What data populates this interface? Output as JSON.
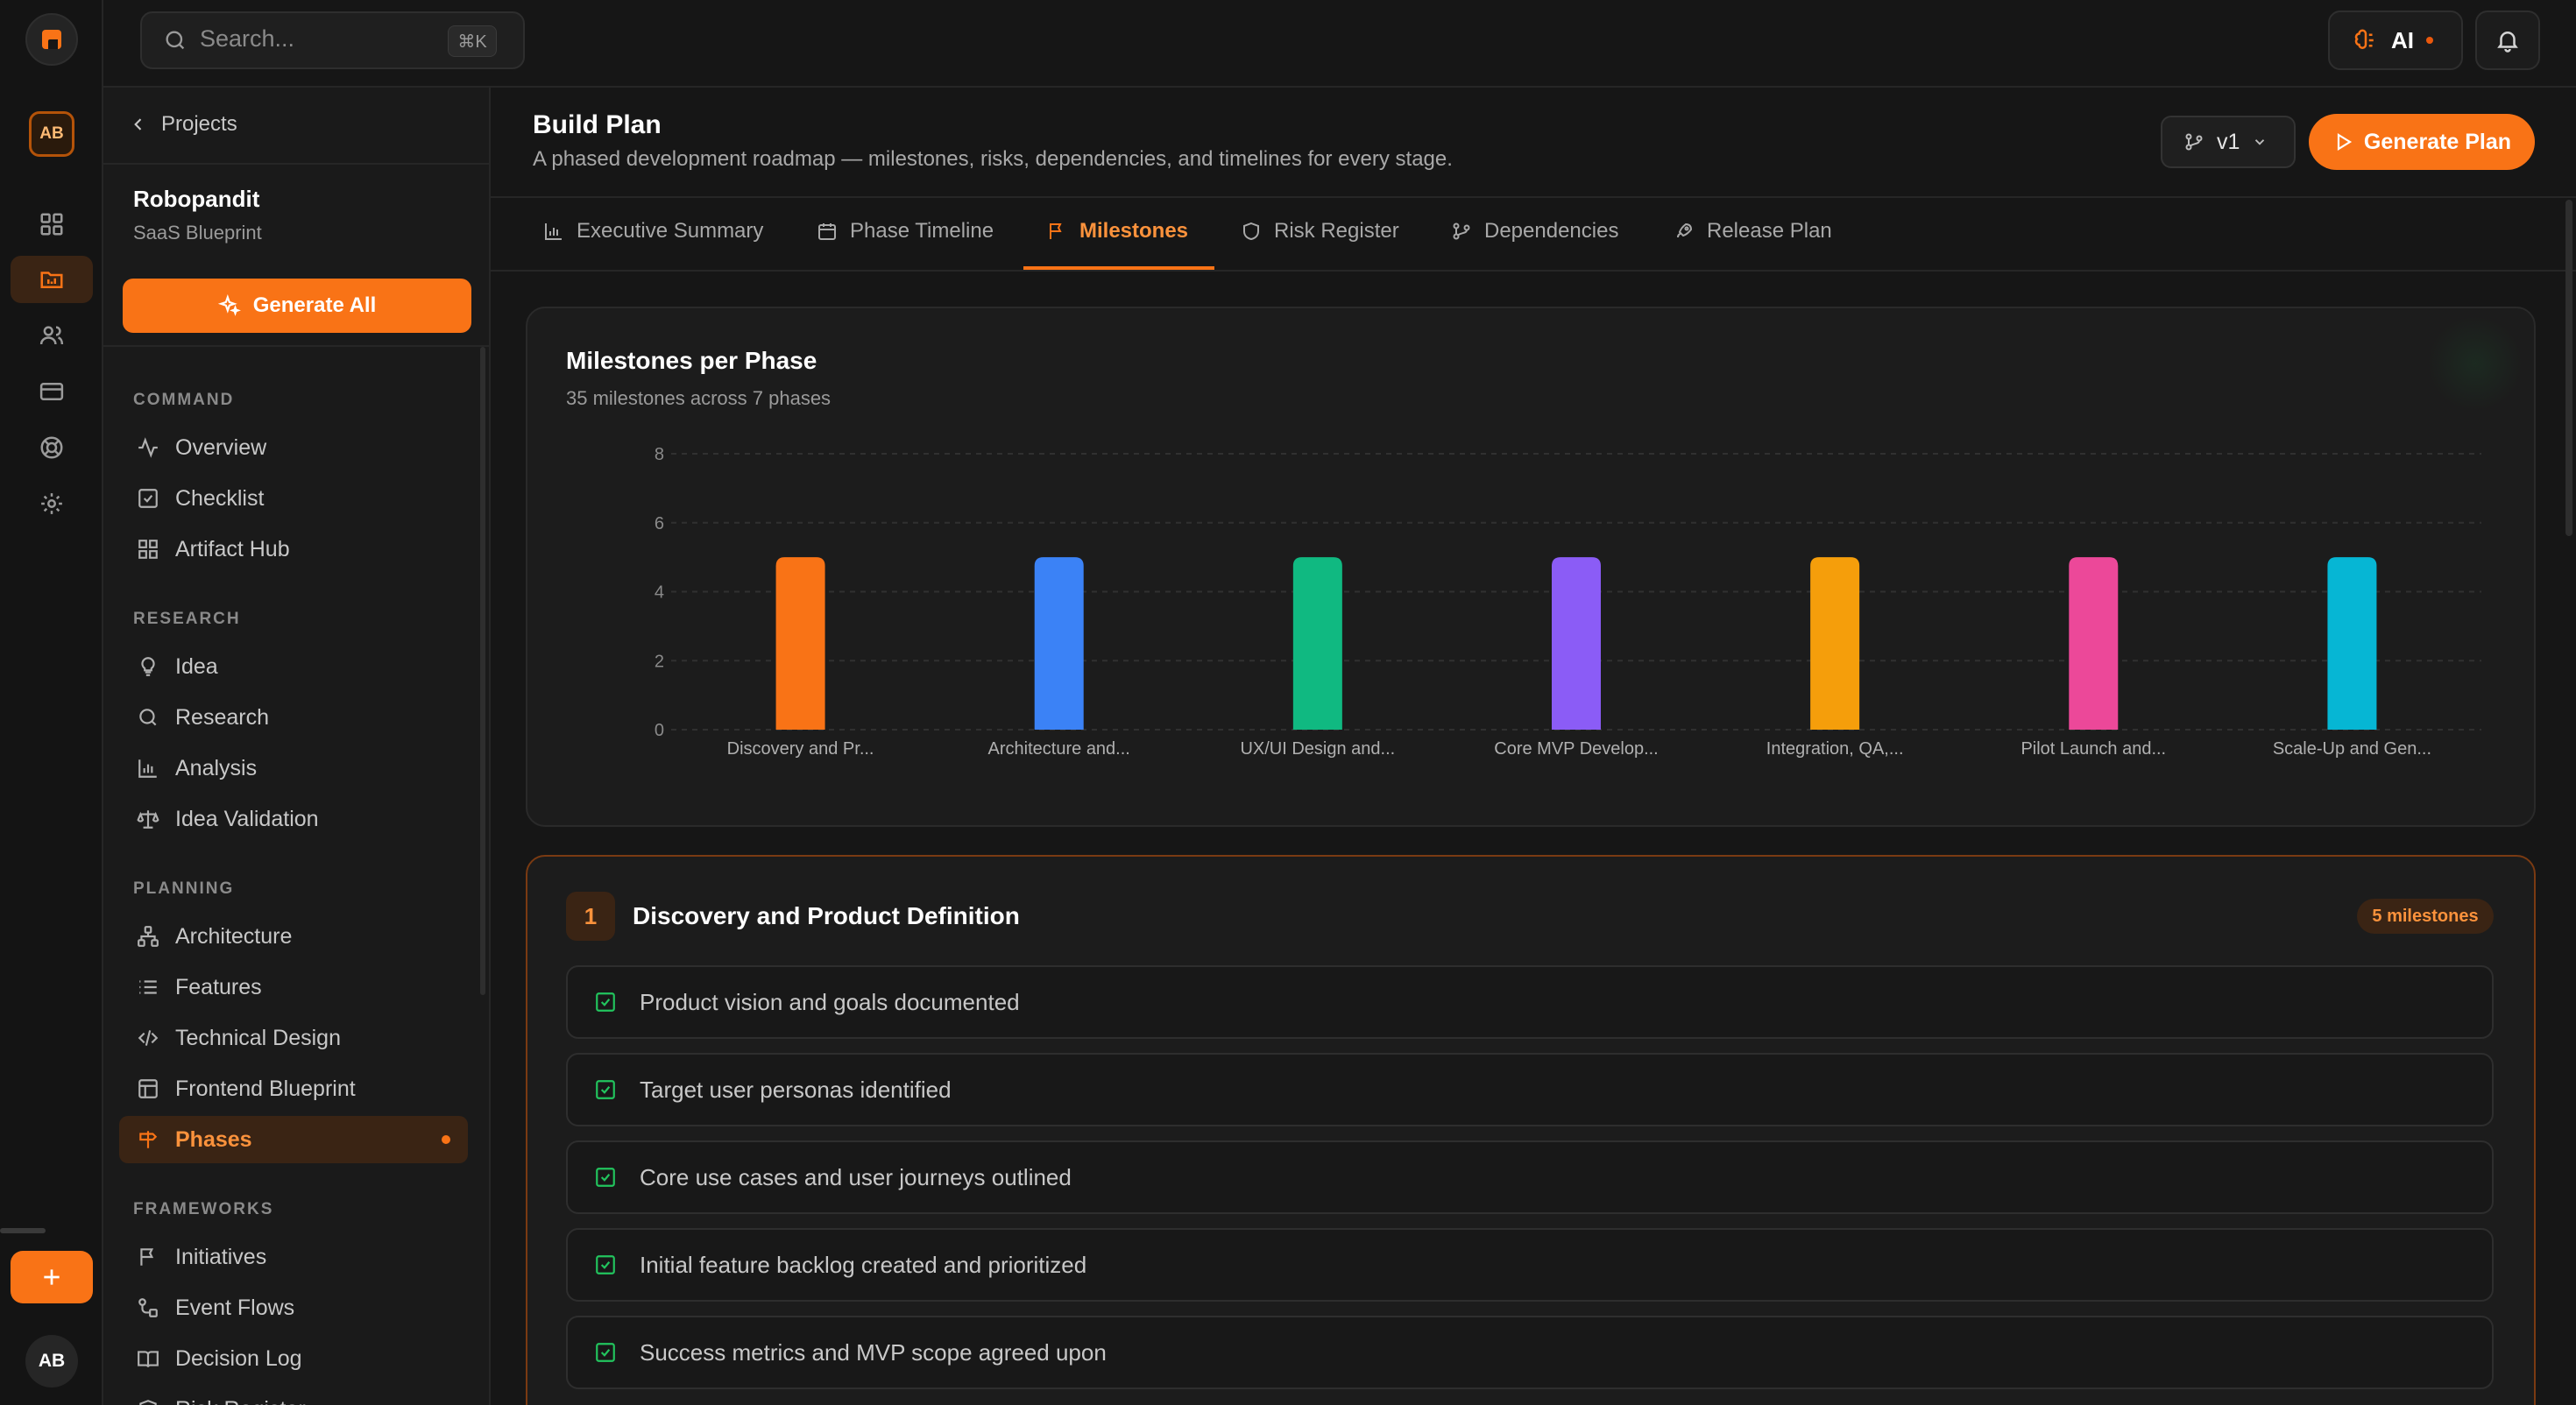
{
  "colors": {
    "accent": "#f97316",
    "background": "#161616",
    "check": "#22c55e"
  },
  "topbar": {
    "search_placeholder": "Search...",
    "search_shortcut": "⌘K",
    "ai_label": "AI"
  },
  "rail": {
    "avatar_initials": "AB",
    "user_initials": "AB",
    "icons": [
      "dashboard-icon",
      "projects-icon",
      "users-icon",
      "billing-icon",
      "help-icon",
      "settings-icon"
    ]
  },
  "sidebar": {
    "back_label": "Projects",
    "project_name": "Robopandit",
    "project_subtitle": "SaaS Blueprint",
    "generate_all_label": "Generate All",
    "sections": {
      "command": {
        "title": "COMMAND",
        "items": [
          "Overview",
          "Checklist",
          "Artifact Hub"
        ]
      },
      "research": {
        "title": "RESEARCH",
        "items": [
          "Idea",
          "Research",
          "Analysis",
          "Idea Validation"
        ]
      },
      "planning": {
        "title": "PLANNING",
        "items": [
          "Architecture",
          "Features",
          "Technical Design",
          "Frontend Blueprint",
          "Phases"
        ]
      },
      "frameworks": {
        "title": "FRAMEWORKS",
        "items": [
          "Initiatives",
          "Event Flows",
          "Decision Log",
          "Risk Register"
        ]
      }
    },
    "active_item": "Phases"
  },
  "page": {
    "title": "Build Plan",
    "description": "A phased development roadmap — milestones, risks, dependencies, and timelines for every stage.",
    "version_label": "v1",
    "generate_plan_label": "Generate Plan"
  },
  "tabs": [
    "Executive Summary",
    "Phase Timeline",
    "Milestones",
    "Risk Register",
    "Dependencies",
    "Release Plan"
  ],
  "active_tab": "Milestones",
  "chart_data": {
    "type": "bar",
    "title": "Milestones per Phase",
    "subtitle": "35 milestones across 7 phases",
    "categories": [
      "Discovery and Pr...",
      "Architecture and...",
      "UX/UI Design and...",
      "Core MVP Develop...",
      "Integration, QA,...",
      "Pilot Launch and...",
      "Scale-Up and Gen..."
    ],
    "values": [
      5,
      5,
      5,
      5,
      5,
      5,
      5
    ],
    "bar_colors": [
      "#f97316",
      "#3b82f6",
      "#10b981",
      "#8b5cf6",
      "#f59e0b",
      "#ec4899",
      "#06b6d4"
    ],
    "ylim": [
      0,
      8
    ],
    "yticks": [
      0,
      2,
      4,
      6,
      8
    ],
    "xlabel": "",
    "ylabel": "",
    "grid": true
  },
  "phase": {
    "number": "1",
    "title": "Discovery and Product Definition",
    "badge": "5 milestones",
    "milestones": [
      "Product vision and goals documented",
      "Target user personas identified",
      "Core use cases and user journeys outlined",
      "Initial feature backlog created and prioritized",
      "Success metrics and MVP scope agreed upon"
    ]
  }
}
